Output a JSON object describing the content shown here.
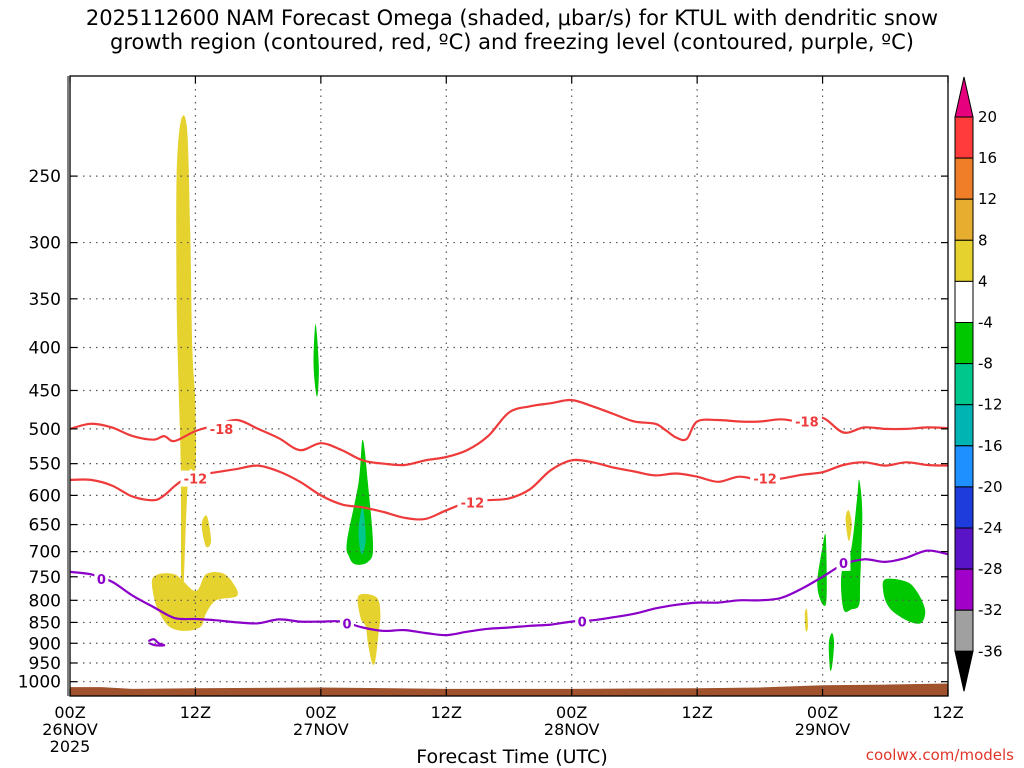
{
  "title": {
    "line1": "2025112600 NAM Forecast Omega (shaded, μbar/s) for KTUL with dendritic snow",
    "line2": "growth region (contoured, red, ºC) and freezing level (contoured, purple, ºC)"
  },
  "credit": "coolwx.com/models",
  "chart_data": {
    "type": "heatmap",
    "xlabel": "Forecast Time (UTC)",
    "ylabel": "",
    "x_ticks": [
      {
        "hour": 0,
        "lines": [
          "00Z",
          "26NOV",
          "2025"
        ]
      },
      {
        "hour": 12,
        "lines": [
          "12Z"
        ]
      },
      {
        "hour": 24,
        "lines": [
          "00Z",
          "27NOV"
        ]
      },
      {
        "hour": 36,
        "lines": [
          "12Z"
        ]
      },
      {
        "hour": 48,
        "lines": [
          "00Z",
          "28NOV"
        ]
      },
      {
        "hour": 60,
        "lines": [
          "12Z"
        ]
      },
      {
        "hour": 72,
        "lines": [
          "00Z",
          "29NOV"
        ]
      },
      {
        "hour": 84,
        "lines": [
          "12Z"
        ]
      }
    ],
    "xlim": [
      0,
      84
    ],
    "y_ticks": [
      250,
      300,
      350,
      400,
      450,
      500,
      550,
      600,
      650,
      700,
      750,
      800,
      850,
      900,
      950,
      1000
    ],
    "ylim": [
      1040,
      190
    ],
    "y_scale": "log-pressure",
    "grid": true,
    "colorbar": {
      "labels": [
        "20",
        "16",
        "12",
        "8",
        "4",
        "-4",
        "-8",
        "-12",
        "-16",
        "-20",
        "-24",
        "-28",
        "-32",
        "-36"
      ],
      "colors": [
        "#ff3b3b",
        "#f07d28",
        "#e6ad2e",
        "#e6d22e",
        "#ffffff",
        "#00c800",
        "#00c88c",
        "#00b4b4",
        "#1e90ff",
        "#1e3cdc",
        "#5a14c8",
        "#a000c8",
        "#a0a0a0"
      ],
      "top_arrow_color": "#e6007e",
      "bottom_arrow_color": "#000000"
    },
    "terrain_color": "#a0522d",
    "contours": [
      {
        "label": "-18",
        "color": "#ee3a3a",
        "points": [
          [
            0,
            500
          ],
          [
            2,
            493
          ],
          [
            4,
            498
          ],
          [
            6,
            510
          ],
          [
            8,
            515
          ],
          [
            9,
            510
          ],
          [
            10,
            517
          ],
          [
            12,
            503
          ],
          [
            14,
            495
          ],
          [
            16,
            488
          ],
          [
            18,
            500
          ],
          [
            20,
            513
          ],
          [
            22,
            530
          ],
          [
            24,
            520
          ],
          [
            26,
            530
          ],
          [
            28,
            545
          ],
          [
            30,
            550
          ],
          [
            32,
            552
          ],
          [
            34,
            545
          ],
          [
            36,
            540
          ],
          [
            38,
            530
          ],
          [
            40,
            510
          ],
          [
            42,
            478
          ],
          [
            44,
            470
          ],
          [
            46,
            466
          ],
          [
            48,
            462
          ],
          [
            50,
            470
          ],
          [
            52,
            480
          ],
          [
            54,
            490
          ],
          [
            56,
            493
          ],
          [
            57,
            502
          ],
          [
            58,
            512
          ],
          [
            59,
            514
          ],
          [
            60,
            490
          ],
          [
            62,
            488
          ],
          [
            64,
            490
          ],
          [
            66,
            490
          ],
          [
            68,
            487
          ],
          [
            70,
            490
          ],
          [
            72,
            485
          ],
          [
            74,
            505
          ],
          [
            76,
            498
          ],
          [
            78,
            500
          ],
          [
            80,
            500
          ],
          [
            82,
            498
          ],
          [
            84,
            499
          ]
        ],
        "labels_at": [
          [
            14.5,
            500
          ],
          [
            70.5,
            490
          ]
        ]
      },
      {
        "label": "-12",
        "color": "#ee3a3a",
        "points": [
          [
            0,
            575
          ],
          [
            2,
            575
          ],
          [
            4,
            584
          ],
          [
            6,
            602
          ],
          [
            8,
            608
          ],
          [
            9,
            600
          ],
          [
            10,
            585
          ],
          [
            11,
            573
          ],
          [
            12,
            568
          ],
          [
            14,
            563
          ],
          [
            16,
            558
          ],
          [
            18,
            553
          ],
          [
            20,
            562
          ],
          [
            22,
            578
          ],
          [
            24,
            600
          ],
          [
            26,
            615
          ],
          [
            28,
            620
          ],
          [
            30,
            628
          ],
          [
            32,
            638
          ],
          [
            34,
            640
          ],
          [
            36,
            625
          ],
          [
            38,
            612
          ],
          [
            40,
            608
          ],
          [
            42,
            605
          ],
          [
            44,
            590
          ],
          [
            46,
            560
          ],
          [
            48,
            545
          ],
          [
            50,
            548
          ],
          [
            52,
            556
          ],
          [
            54,
            562
          ],
          [
            56,
            568
          ],
          [
            58,
            565
          ],
          [
            60,
            570
          ],
          [
            62,
            578
          ],
          [
            64,
            570
          ],
          [
            66,
            575
          ],
          [
            68,
            573
          ],
          [
            70,
            567
          ],
          [
            72,
            563
          ],
          [
            74,
            552
          ],
          [
            76,
            548
          ],
          [
            78,
            553
          ],
          [
            80,
            548
          ],
          [
            82,
            552
          ],
          [
            84,
            553
          ]
        ],
        "labels_at": [
          [
            12,
            573
          ],
          [
            38.5,
            612
          ],
          [
            66.5,
            573
          ]
        ]
      },
      {
        "label": "0",
        "color": "#8a00c8",
        "points": [
          [
            0,
            740
          ],
          [
            2,
            745
          ],
          [
            4,
            760
          ],
          [
            6,
            790
          ],
          [
            8,
            815
          ],
          [
            10,
            840
          ],
          [
            12,
            842
          ],
          [
            14,
            845
          ],
          [
            16,
            850
          ],
          [
            18,
            852
          ],
          [
            20,
            843
          ],
          [
            22,
            848
          ],
          [
            24,
            848
          ],
          [
            26,
            848
          ],
          [
            28,
            862
          ],
          [
            30,
            870
          ],
          [
            32,
            868
          ],
          [
            34,
            875
          ],
          [
            36,
            880
          ],
          [
            38,
            872
          ],
          [
            40,
            865
          ],
          [
            42,
            862
          ],
          [
            44,
            858
          ],
          [
            46,
            855
          ],
          [
            48,
            848
          ],
          [
            50,
            845
          ],
          [
            52,
            838
          ],
          [
            54,
            830
          ],
          [
            56,
            818
          ],
          [
            58,
            810
          ],
          [
            60,
            805
          ],
          [
            62,
            805
          ],
          [
            64,
            800
          ],
          [
            66,
            800
          ],
          [
            68,
            795
          ],
          [
            70,
            775
          ],
          [
            72,
            750
          ],
          [
            74,
            725
          ],
          [
            76,
            715
          ],
          [
            78,
            720
          ],
          [
            80,
            712
          ],
          [
            82,
            698
          ],
          [
            84,
            705
          ]
        ],
        "labels_at": [
          [
            3,
            755
          ],
          [
            26.5,
            852
          ],
          [
            49,
            848
          ],
          [
            74,
            722
          ]
        ]
      },
      {
        "label": "0",
        "color": "#8a00c8",
        "points": [
          [
            7.5,
            895
          ],
          [
            8,
            890
          ],
          [
            8.5,
            900
          ],
          [
            9,
            905
          ],
          [
            8.2,
            905
          ],
          [
            7.6,
            900
          ]
        ],
        "labels_at": []
      }
    ],
    "shaded_regions": [
      {
        "value_range": [
          4,
          8
        ],
        "color": "#e6d22e",
        "points": [
          [
            10.7,
            850
          ],
          [
            10.6,
            560
          ],
          [
            10.4,
            450
          ],
          [
            10.2,
            350
          ],
          [
            10.2,
            250
          ],
          [
            10.6,
            215
          ],
          [
            11.2,
            220
          ],
          [
            11.5,
            290
          ],
          [
            11.7,
            400
          ],
          [
            12,
            470
          ],
          [
            12,
            560
          ],
          [
            11.3,
            575
          ]
        ]
      },
      {
        "value_range": [
          4,
          8
        ],
        "color": "#e6d22e",
        "points": [
          [
            8,
            750
          ],
          [
            10,
            745
          ],
          [
            12,
            780
          ],
          [
            13,
            745
          ],
          [
            14.5,
            742
          ],
          [
            15.5,
            760
          ],
          [
            16,
            790
          ],
          [
            14,
            800
          ],
          [
            13,
            830
          ],
          [
            12.5,
            860
          ],
          [
            11,
            870
          ],
          [
            9.5,
            860
          ],
          [
            8.5,
            825
          ],
          [
            8,
            790
          ]
        ]
      },
      {
        "value_range": [
          4,
          8
        ],
        "color": "#e6d22e",
        "points": [
          [
            12.6,
            650
          ],
          [
            13.1,
            635
          ],
          [
            13.5,
            680
          ],
          [
            13,
            690
          ]
        ]
      },
      {
        "value_range": [
          -8,
          -4
        ],
        "color": "#00c800",
        "points": [
          [
            23.5,
            450
          ],
          [
            23.3,
            415
          ],
          [
            23.5,
            375
          ],
          [
            23.8,
            420
          ],
          [
            23.7,
            455
          ]
        ]
      },
      {
        "value_range": [
          -8,
          -4
        ],
        "color": "#00c800",
        "points": [
          [
            26.5,
            680
          ],
          [
            27.6,
            580
          ],
          [
            28.0,
            515
          ],
          [
            28.5,
            580
          ],
          [
            29,
            690
          ],
          [
            28.5,
            720
          ],
          [
            27.3,
            725
          ],
          [
            26.7,
            710
          ]
        ]
      },
      {
        "value_range": [
          -12,
          -8
        ],
        "color": "#00c88c",
        "points": [
          [
            27.6,
            660
          ],
          [
            28,
            620
          ],
          [
            28.3,
            670
          ],
          [
            28.1,
            700
          ],
          [
            27.8,
            700
          ]
        ]
      },
      {
        "value_range": [
          4,
          8
        ],
        "color": "#e6d22e",
        "points": [
          [
            27.6,
            790
          ],
          [
            29.3,
            793
          ],
          [
            29.7,
            830
          ],
          [
            29.5,
            880
          ],
          [
            29.2,
            945
          ],
          [
            28.9,
            950
          ],
          [
            28.5,
            900
          ],
          [
            28.3,
            860
          ],
          [
            27.8,
            840
          ]
        ]
      },
      {
        "value_range": [
          4,
          8
        ],
        "color": "#e6d22e",
        "points": [
          [
            74.2,
            640
          ],
          [
            74.5,
            625
          ],
          [
            74.8,
            650
          ],
          [
            74.5,
            680
          ]
        ]
      },
      {
        "value_range": [
          4,
          8
        ],
        "color": "#e6d22e",
        "points": [
          [
            70.3,
            830
          ],
          [
            70.5,
            820
          ],
          [
            70.6,
            860
          ],
          [
            70.4,
            870
          ]
        ]
      },
      {
        "value_range": [
          -8,
          -4
        ],
        "color": "#00c800",
        "points": [
          [
            71.5,
            760
          ],
          [
            72,
            690
          ],
          [
            72.3,
            670
          ],
          [
            72.4,
            760
          ],
          [
            72.3,
            810
          ],
          [
            71.8,
            800
          ]
        ]
      },
      {
        "value_range": [
          -8,
          -4
        ],
        "color": "#00c800",
        "points": [
          [
            73.8,
            745
          ],
          [
            74.7,
            700
          ],
          [
            75.3,
            605
          ],
          [
            75.5,
            575
          ],
          [
            75.8,
            630
          ],
          [
            75.6,
            760
          ],
          [
            75.5,
            810
          ],
          [
            74.8,
            820
          ],
          [
            74,
            820
          ]
        ]
      },
      {
        "value_range": [
          -8,
          -4
        ],
        "color": "#00c800",
        "points": [
          [
            72.6,
            900
          ],
          [
            72.9,
            875
          ],
          [
            73.1,
            900
          ],
          [
            72.9,
            960
          ],
          [
            72.7,
            965
          ]
        ]
      },
      {
        "value_range": [
          -8,
          -4
        ],
        "color": "#00c800",
        "points": [
          [
            78,
            755
          ],
          [
            80,
            760
          ],
          [
            81,
            780
          ],
          [
            81.8,
            820
          ],
          [
            81.5,
            850
          ],
          [
            80.5,
            850
          ],
          [
            79,
            830
          ],
          [
            78.2,
            810
          ],
          [
            77.8,
            780
          ]
        ]
      }
    ],
    "terrain_profile": [
      [
        0,
        1015
      ],
      [
        3,
        1015
      ],
      [
        6,
        1020
      ],
      [
        12,
        1018
      ],
      [
        24,
        1016
      ],
      [
        36,
        1020
      ],
      [
        48,
        1020
      ],
      [
        60,
        1018
      ],
      [
        66,
        1016
      ],
      [
        72,
        1010
      ],
      [
        78,
        1008
      ],
      [
        84,
        1005
      ]
    ]
  }
}
